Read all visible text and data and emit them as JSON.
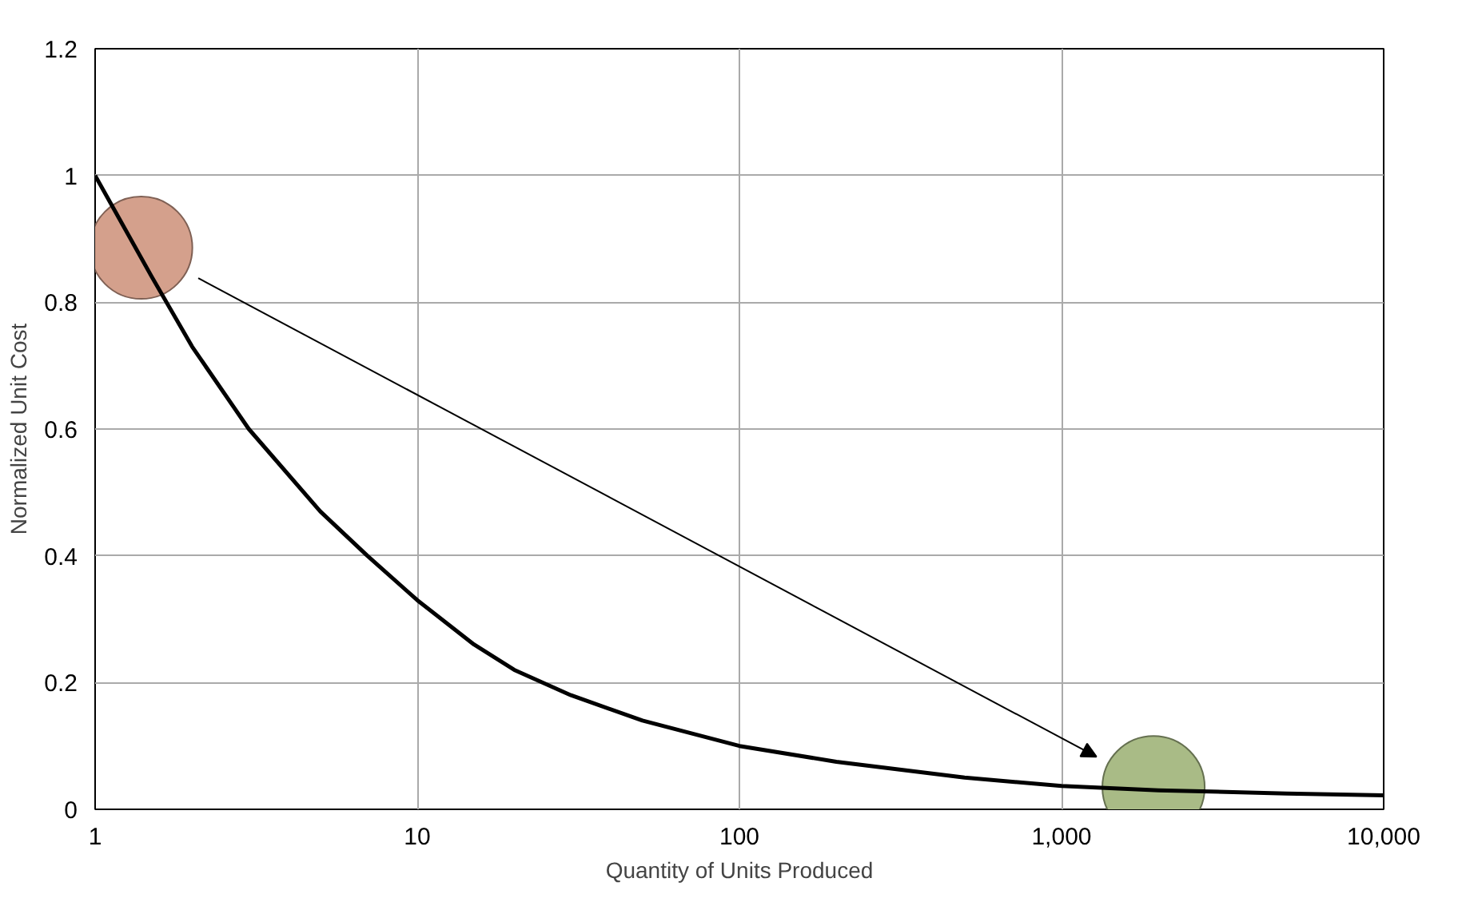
{
  "chart_data": {
    "type": "line",
    "xlabel": "Quantity of Units Produced",
    "ylabel": "Normalized Unit Cost",
    "log": "x",
    "grid": true,
    "line_style": "solid",
    "xlim": [
      1,
      10000
    ],
    "ylim": [
      0,
      1.2
    ],
    "xticks": [
      1,
      10,
      100,
      {
        "value": 1000,
        "label": "1,000"
      },
      {
        "value": 10000,
        "label": "10,000"
      }
    ],
    "yticks": [
      0,
      0.2,
      0.4,
      0.6,
      0.8,
      1,
      1.2
    ],
    "series": [
      {
        "color": "#000000",
        "x": [
          1,
          1.5,
          2,
          3,
          5,
          7,
          10,
          15,
          20,
          30,
          50,
          100,
          200,
          500,
          1000,
          2000,
          5000,
          10000
        ],
        "values": [
          1.0,
          0.84,
          0.73,
          0.6,
          0.47,
          0.4,
          0.33,
          0.26,
          0.22,
          0.18,
          0.14,
          0.1,
          0.075,
          0.05,
          0.037,
          0.03,
          0.025,
          0.022
        ]
      },
      {
        "type": "bubble",
        "color": "#d4a08c",
        "x": [
          1.39
        ],
        "values": [
          0.886
        ],
        "sizes": [
          1
        ]
      },
      {
        "type": "bubble",
        "color": "#a9bb86",
        "x": [
          1930
        ],
        "values": [
          0.035
        ],
        "sizes": [
          1
        ]
      }
    ]
  }
}
